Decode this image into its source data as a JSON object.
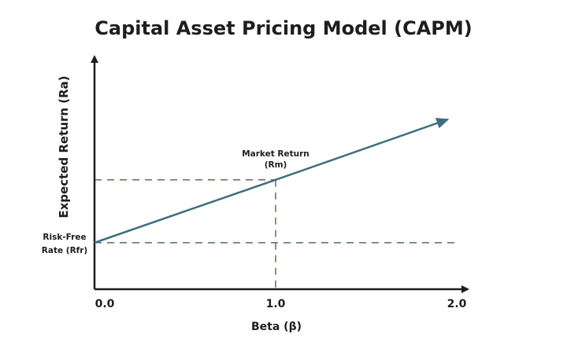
{
  "chart_data": {
    "type": "line",
    "title": "Capital Asset Pricing Model (CAPM)",
    "xlabel": "Beta (β)",
    "ylabel": "Expected Return (Ra)",
    "x_ticks": [
      {
        "value": 0,
        "label": "0.0"
      },
      {
        "value": 1,
        "label": "1.0"
      },
      {
        "value": 2,
        "label": "2.0"
      }
    ],
    "xlim": [
      0,
      2.1
    ],
    "ylim": [
      0.26,
      3.96
    ],
    "grid": false,
    "series": [
      {
        "points": [
          {
            "x": 0,
            "y": 1
          },
          {
            "x": 1.0,
            "y": 2
          },
          {
            "x": 1.95,
            "y": 2.96
          }
        ],
        "color": "#3e6e7e",
        "arrow_end": true
      }
    ],
    "reference_lines": [
      {
        "orientation": "horizontal",
        "y": 1,
        "label": [
          "Risk-Free",
          "Rate (Rfr)"
        ],
        "color": "#5d7a72",
        "style": "dashed"
      },
      {
        "orientation": "horizontal",
        "y": 2,
        "to_x": 1,
        "color": "#8c6b57",
        "style": "dashed"
      },
      {
        "orientation": "vertical",
        "x": 1,
        "to_y": 2,
        "color": "#8c6b57",
        "style": "dashed"
      }
    ],
    "annotations": [
      {
        "x": 1,
        "y": 2,
        "text": [
          "Market Return",
          "(Rm)"
        ]
      }
    ],
    "axis_color": "#1e1e1e"
  }
}
